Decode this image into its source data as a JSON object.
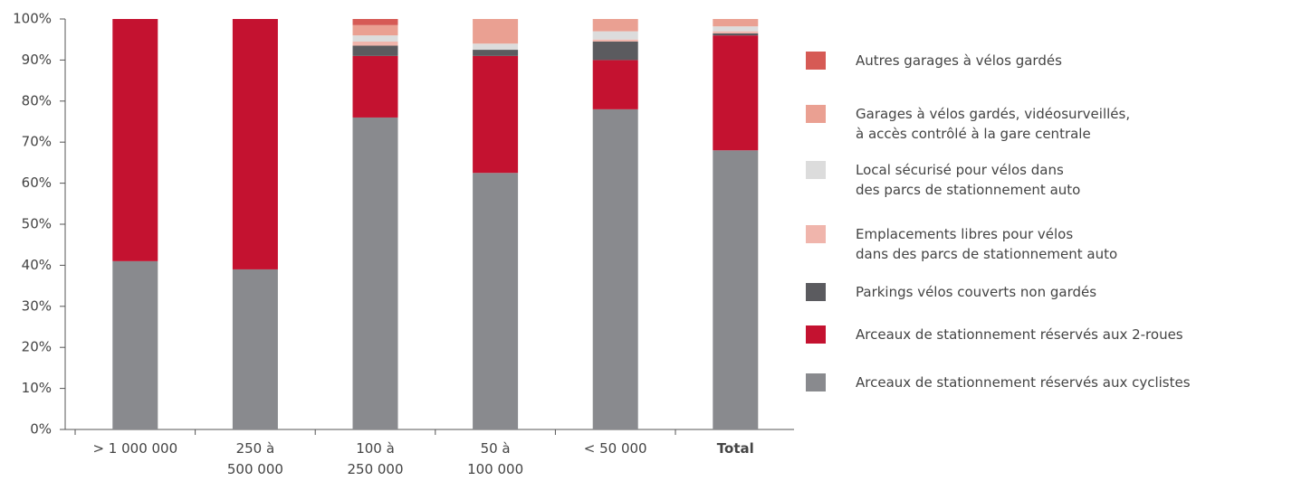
{
  "chart_data": {
    "type": "stacked_bar",
    "categories": [
      "> 1 000 000",
      "250 à\n500 000",
      "100 à\n250 000",
      "50 à\n100 000",
      "< 50 000",
      "Total"
    ],
    "series": [
      {
        "name": "Arceaux de stationnement réservés aux cyclistes",
        "color": "#898a8e",
        "values": [
          41,
          39,
          76,
          62.5,
          78,
          68
        ]
      },
      {
        "name": "Arceaux de stationnement réservés aux 2-roues",
        "color": "#c41230",
        "values": [
          59,
          61,
          15,
          28.5,
          12,
          28
        ]
      },
      {
        "name": "Parkings vélos couverts non gardés",
        "color": "#5b5b5f",
        "values": [
          0,
          0,
          2.5,
          1.5,
          4.5,
          0.5
        ]
      },
      {
        "name": "Emplacements libres pour vélos\ndans des parcs de stationnement auto",
        "color": "#f0b5ac",
        "values": [
          0,
          0,
          1,
          0,
          0.5,
          0.5
        ]
      },
      {
        "name": "Local sécurisé pour vélos dans\ndes parcs de stationnement auto",
        "color": "#dcdcdc",
        "values": [
          0,
          0,
          1.5,
          1.5,
          2,
          1.2
        ]
      },
      {
        "name": "Garages à vélos gardés, vidéosurveillés,\nà accès contrôlé à la gare centrale",
        "color": "#eaa092",
        "values": [
          0,
          0,
          2.5,
          6,
          3,
          1.8
        ]
      },
      {
        "name": "Autres garages à vélos gardés",
        "color": "#d65a55",
        "values": [
          0,
          0,
          1.5,
          0,
          0,
          0
        ]
      }
    ],
    "ylim": [
      0,
      100
    ],
    "yticks": [
      {
        "value": 0,
        "label": "0%"
      },
      {
        "value": 10,
        "label": "10%"
      },
      {
        "value": 20,
        "label": "20%"
      },
      {
        "value": 30,
        "label": "30%"
      },
      {
        "value": 40,
        "label": "40%"
      },
      {
        "value": 50,
        "label": "50%"
      },
      {
        "value": 60,
        "label": "60%"
      },
      {
        "value": 70,
        "label": "70%"
      },
      {
        "value": 80,
        "label": "80%"
      },
      {
        "value": 90,
        "label": "90%"
      },
      {
        "value": 100,
        "label": "100%"
      }
    ],
    "grid": false,
    "legend": "right"
  }
}
